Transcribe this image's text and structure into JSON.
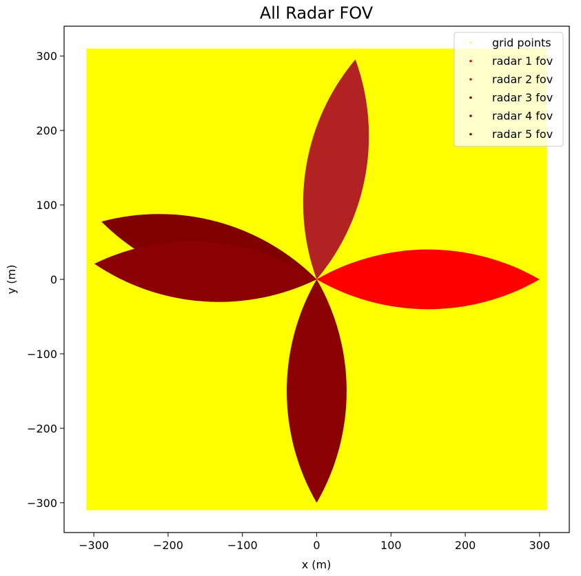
{
  "chart_data": {
    "type": "scatter",
    "title": "All Radar FOV",
    "xlabel": "x (m)",
    "ylabel": "y (m)",
    "xlim": [
      -340,
      340
    ],
    "ylim": [
      -340,
      340
    ],
    "xticks": [
      -300,
      -200,
      -100,
      0,
      100,
      200,
      300
    ],
    "yticks": [
      -300,
      -200,
      -100,
      0,
      100,
      200,
      300
    ],
    "xtick_labels": [
      "−300",
      "−200",
      "−100",
      "0",
      "100",
      "200",
      "300"
    ],
    "ytick_labels": [
      "−300",
      "−200",
      "−100",
      "0",
      "100",
      "200",
      "300"
    ],
    "grid": false,
    "legend_position": "top-right",
    "grid_points": {
      "name": "grid points",
      "color": "#ffff00",
      "x_range": [
        -310,
        310
      ],
      "y_range": [
        -310,
        310
      ]
    },
    "series": [
      {
        "name": "grid points",
        "color": "#ffff00"
      },
      {
        "name": "radar 1 fov",
        "color": "#ff0000",
        "origin": [
          0,
          0
        ],
        "heading_deg": 0,
        "range": 300,
        "half_fov_deg": 35
      },
      {
        "name": "radar 2 fov",
        "color": "#b22222",
        "origin": [
          0,
          0
        ],
        "heading_deg": 80,
        "range": 300,
        "half_fov_deg": 35
      },
      {
        "name": "radar 3 fov",
        "color": "#800000",
        "origin": [
          0,
          0
        ],
        "heading_deg": 165,
        "range": 300,
        "half_fov_deg": 35
      },
      {
        "name": "radar 4 fov",
        "color": "#8b0000",
        "origin": [
          0,
          0
        ],
        "heading_deg": 176,
        "range": 300,
        "half_fov_deg": 35
      },
      {
        "name": "radar 5 fov",
        "color": "#8b0000",
        "origin": [
          0,
          0
        ],
        "heading_deg": 270,
        "range": 300,
        "half_fov_deg": 35
      }
    ],
    "draw_order": [
      1,
      2,
      3,
      4,
      5
    ]
  }
}
